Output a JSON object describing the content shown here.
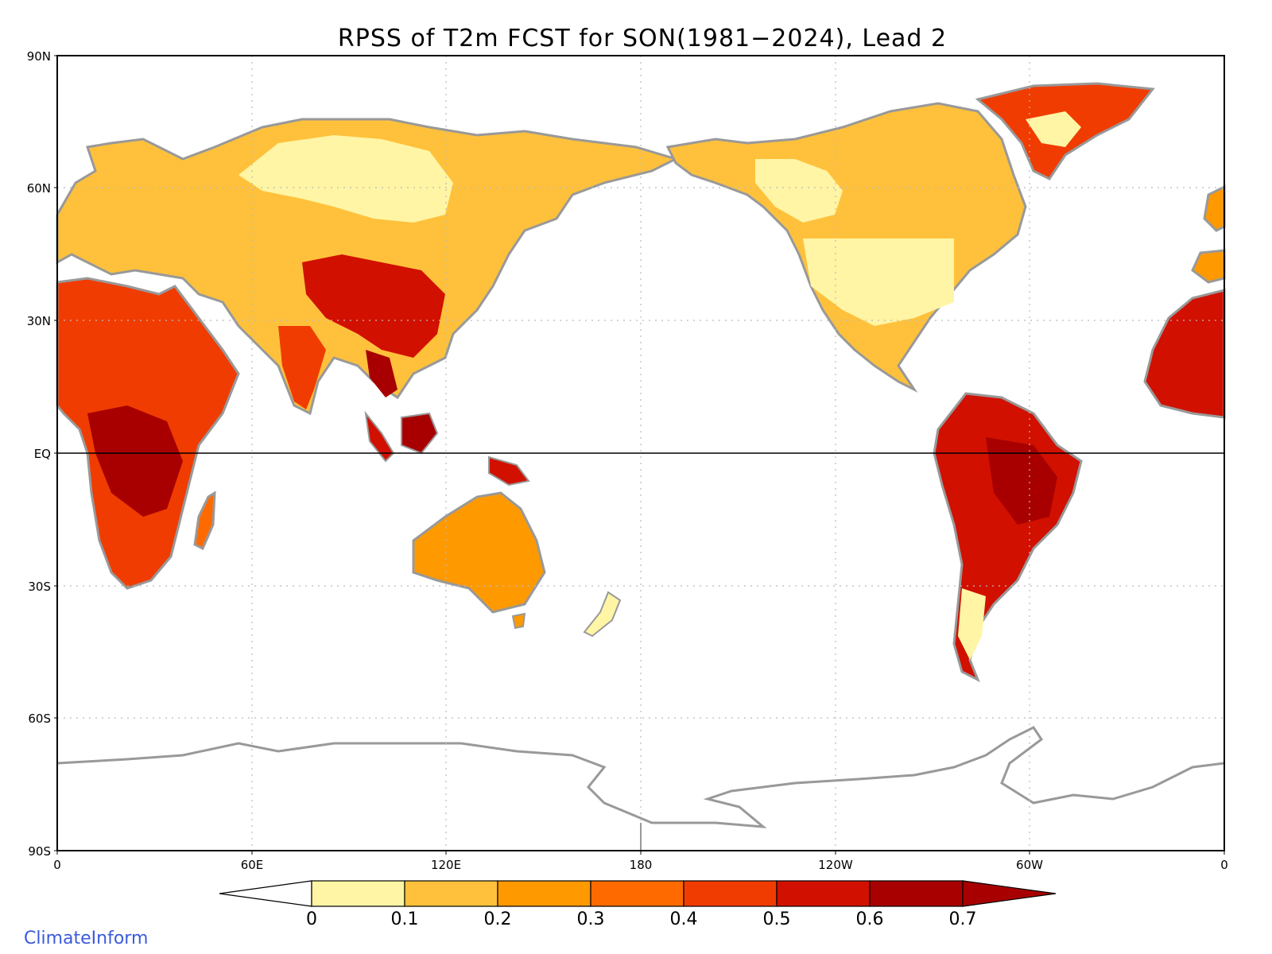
{
  "title": "RPSS of T2m FCST for SON(1981−2024), Lead 2",
  "credit": "ClimateInform",
  "axes": {
    "lat_labels": [
      "90N",
      "60N",
      "30N",
      "EQ",
      "30S",
      "60S",
      "90S"
    ],
    "lon_labels": [
      "0",
      "60E",
      "120E",
      "180",
      "120W",
      "60W",
      "0"
    ]
  },
  "colorbar": {
    "ticks": [
      "0",
      "0.1",
      "0.2",
      "0.3",
      "0.4",
      "0.5",
      "0.6",
      "0.7"
    ],
    "colors": [
      "#ffffff",
      "#fff5a5",
      "#ffc13b",
      "#ff9900",
      "#ff6a00",
      "#f03c00",
      "#d11000",
      "#a80000"
    ]
  },
  "colors": {
    "coast": "#999999",
    "grid": "#bbbbbb",
    "frame": "#000000"
  }
}
